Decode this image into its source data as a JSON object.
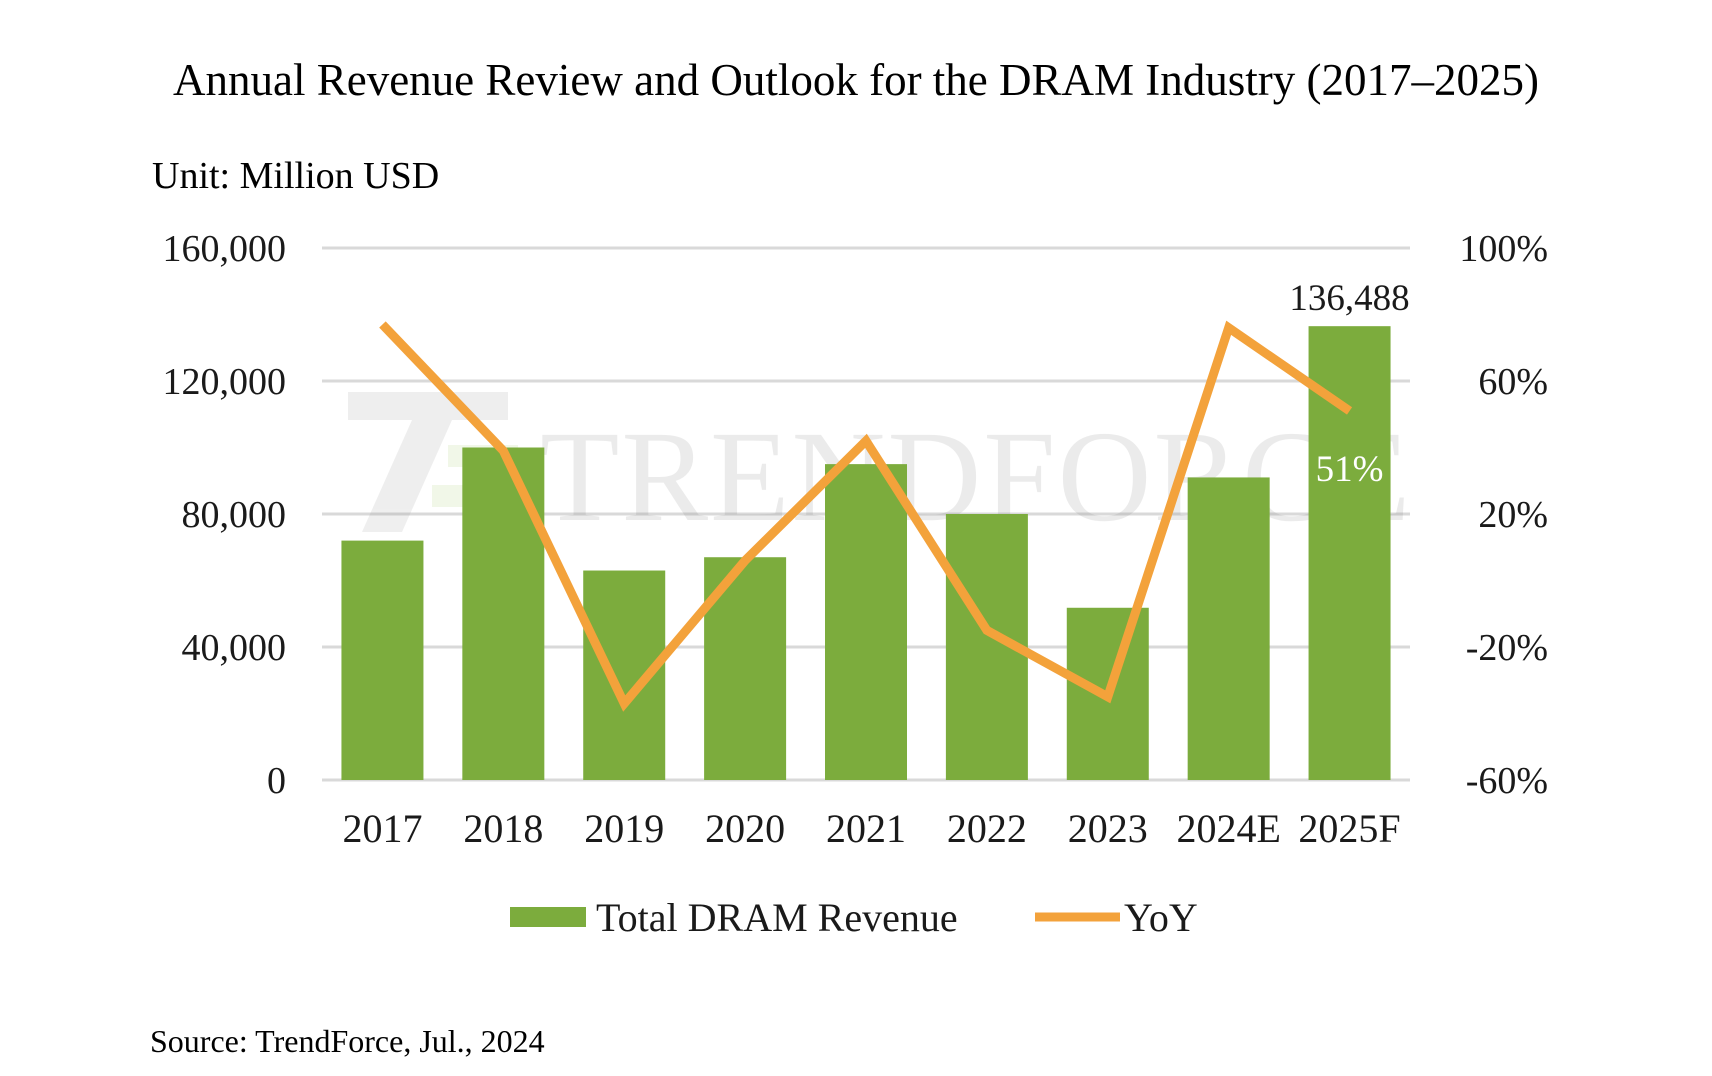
{
  "chart_data": {
    "type": "bar",
    "title": "Annual Revenue Review and Outlook for the DRAM Industry (2017–2025)",
    "unit_label": "Unit: Million USD",
    "categories": [
      "2017",
      "2018",
      "2019",
      "2020",
      "2021",
      "2022",
      "2023",
      "2024E",
      "2025F"
    ],
    "series": [
      {
        "name": "Total DRAM Revenue",
        "type": "bar",
        "axis": "left",
        "color": "#7cac3d",
        "values": [
          72000,
          100000,
          63000,
          67000,
          95000,
          80000,
          51800,
          91000,
          136488
        ]
      },
      {
        "name": "YoY",
        "type": "line",
        "axis": "right",
        "color": "#f3a23b",
        "values": [
          77,
          39,
          -37,
          6,
          42,
          -15,
          -35,
          76,
          51
        ]
      }
    ],
    "y_left": {
      "min": 0,
      "max": 160000,
      "ticks": [
        0,
        40000,
        80000,
        120000,
        160000
      ],
      "tick_labels": [
        "0",
        "40,000",
        "80,000",
        "120,000",
        "160,000"
      ]
    },
    "y_right": {
      "min": -60,
      "max": 100,
      "ticks": [
        -60,
        -20,
        20,
        60,
        100
      ],
      "tick_labels": [
        "-60%",
        "-20%",
        "20%",
        "60%",
        "100%"
      ]
    },
    "annotations": {
      "bar_value_label": "136,488",
      "yoy_value_label": "51%"
    },
    "legend": {
      "position": "bottom",
      "bar_label": "Total DRAM Revenue",
      "line_label": "YoY"
    },
    "grid": true,
    "gridline_color": "#d9d9d9",
    "watermark": "TRENDFORCE",
    "source": "Source: TrendForce, Jul., 2024"
  }
}
